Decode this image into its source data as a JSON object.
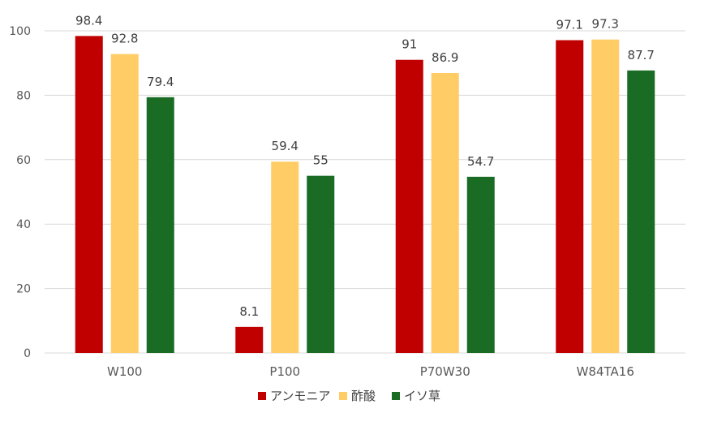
{
  "chart_data": {
    "type": "bar",
    "categories": [
      "W100",
      "P100",
      "P70W30",
      "W84TA16"
    ],
    "series": [
      {
        "name": "アンモニア",
        "color": "#c00000",
        "values": [
          98.4,
          8.1,
          91,
          97.1
        ]
      },
      {
        "name": "酢酸",
        "color": "#ffcc66",
        "values": [
          92.8,
          59.4,
          86.9,
          97.3
        ]
      },
      {
        "name": "イソ草",
        "color": "#1a6b24",
        "values": [
          79.4,
          55,
          54.7,
          87.7
        ]
      }
    ],
    "ylim": [
      0,
      100
    ],
    "yticks": [
      0,
      20,
      40,
      60,
      80,
      100
    ],
    "grid": true,
    "legend": "bottom",
    "data_labels": true,
    "gridline_color": "#d9d9d9"
  }
}
